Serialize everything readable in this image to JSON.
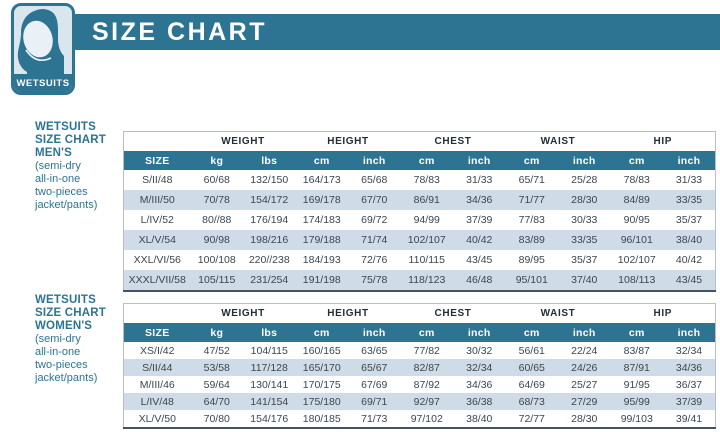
{
  "header": {
    "title": "SIZE CHART",
    "logo_label": "WETSUITS",
    "logo_icon": "wetsuit-hood-icon"
  },
  "colors": {
    "accent": "#2d7492",
    "row_alt": "#cfdbe7",
    "badge_bg": "#d9e6ee",
    "data_text": "#3a4653"
  },
  "sections": [
    {
      "id": "mens",
      "sidebar": {
        "title_lines": [
          "WETSUITS",
          "SIZE CHART",
          "MEN'S"
        ],
        "subtitle_lines": [
          "(semi-dry",
          "all-in-one",
          "two-pieces",
          "jacket/pants)"
        ]
      },
      "table": {
        "group_headers": [
          {
            "label": "",
            "span": 1
          },
          {
            "label": "WEIGHT",
            "span": 2
          },
          {
            "label": "HEIGHT",
            "span": 2
          },
          {
            "label": "CHEST",
            "span": 2
          },
          {
            "label": "WAIST",
            "span": 2
          },
          {
            "label": "HIP",
            "span": 2
          }
        ],
        "column_headers": [
          "SIZE",
          "kg",
          "lbs",
          "cm",
          "inch",
          "cm",
          "inch",
          "cm",
          "inch",
          "cm",
          "inch"
        ],
        "rows": [
          [
            "S/II/48",
            "60/68",
            "132/150",
            "164/173",
            "65/68",
            "78/83",
            "31/33",
            "65/71",
            "25/28",
            "78/83",
            "31/33"
          ],
          [
            "M/III/50",
            "70/78",
            "154/172",
            "169/178",
            "67/70",
            "86/91",
            "34/36",
            "71/77",
            "28/30",
            "84/89",
            "33/35"
          ],
          [
            "L/IV/52",
            "80//88",
            "176/194",
            "174/183",
            "69/72",
            "94/99",
            "37/39",
            "77/83",
            "30/33",
            "90/95",
            "35/37"
          ],
          [
            "XL/V/54",
            "90/98",
            "198/216",
            "179/188",
            "71/74",
            "102/107",
            "40/42",
            "83/89",
            "33/35",
            "96/101",
            "38/40"
          ],
          [
            "XXL/VI/56",
            "100/108",
            "220//238",
            "184/193",
            "72/76",
            "110/115",
            "43/45",
            "89/95",
            "35/37",
            "102/107",
            "40/42"
          ],
          [
            "XXXL/VII/58",
            "105/115",
            "231/254",
            "191/198",
            "75/78",
            "118/123",
            "46/48",
            "95/101",
            "37/40",
            "108/113",
            "43/45"
          ]
        ]
      }
    },
    {
      "id": "womens",
      "sidebar": {
        "title_lines": [
          "WETSUITS",
          "SIZE CHART",
          "WOMEN'S"
        ],
        "subtitle_lines": [
          "(semi-dry",
          "all-in-one",
          "two-pieces",
          "jacket/pants)"
        ]
      },
      "table": {
        "group_headers": [
          {
            "label": "",
            "span": 1
          },
          {
            "label": "WEIGHT",
            "span": 2
          },
          {
            "label": "HEIGHT",
            "span": 2
          },
          {
            "label": "CHEST",
            "span": 2
          },
          {
            "label": "WAIST",
            "span": 2
          },
          {
            "label": "HIP",
            "span": 2
          }
        ],
        "column_headers": [
          "SIZE",
          "kg",
          "lbs",
          "cm",
          "inch",
          "cm",
          "inch",
          "cm",
          "inch",
          "cm",
          "inch"
        ],
        "rows": [
          [
            "XS/I/42",
            "47/52",
            "104/115",
            "160/165",
            "63/65",
            "77/82",
            "30/32",
            "56/61",
            "22/24",
            "83/87",
            "32/34"
          ],
          [
            "S/II/44",
            "53/58",
            "117/128",
            "165/170",
            "65/67",
            "82/87",
            "32/34",
            "60/65",
            "24/26",
            "87/91",
            "34/36"
          ],
          [
            "M/III/46",
            "59/64",
            "130/141",
            "170/175",
            "67/69",
            "87/92",
            "34/36",
            "64/69",
            "25/27",
            "91/95",
            "36/37"
          ],
          [
            "L/IV/48",
            "64/70",
            "141/154",
            "175/180",
            "69/71",
            "92/97",
            "36/38",
            "68/73",
            "27/29",
            "95/99",
            "37/39"
          ],
          [
            "XL/V/50",
            "70/80",
            "154/176",
            "180/185",
            "71/73",
            "97/102",
            "38/40",
            "72/77",
            "28/30",
            "99/103",
            "39/41"
          ]
        ]
      }
    }
  ]
}
